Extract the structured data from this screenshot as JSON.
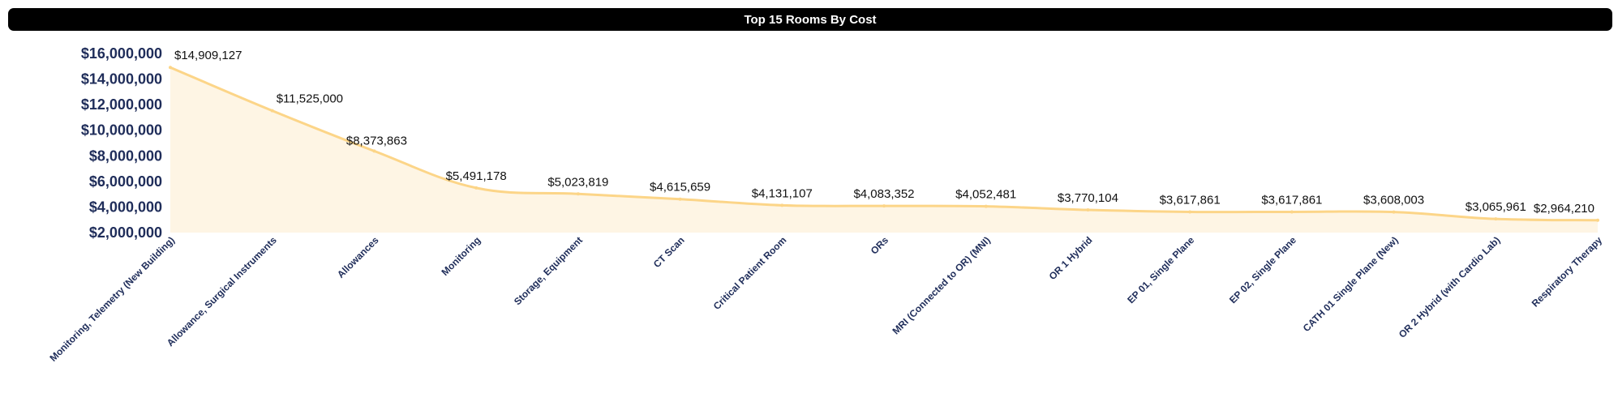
{
  "chart_data": {
    "type": "area",
    "title": "Top 15 Rooms By Cost",
    "xlabel": "",
    "ylabel": "",
    "ylim": [
      2000000,
      16000000
    ],
    "yticks": [
      2000000,
      4000000,
      6000000,
      8000000,
      10000000,
      12000000,
      14000000,
      16000000
    ],
    "ytick_labels": [
      "$2,000,000",
      "$4,000,000",
      "$6,000,000",
      "$8,000,000",
      "$10,000,000",
      "$12,000,000",
      "$14,000,000",
      "$16,000,000"
    ],
    "categories": [
      "Monitoring, Telemetry (New Building)",
      "Allowance, Surgical Instruments",
      "Allowances",
      "Monitoring",
      "Storage, Equipment",
      "CT Scan",
      "Critical Patient Room",
      "ORs",
      "MRI (Connected to OR) (MNI)",
      "OR 1 Hybrid",
      "EP 01, Single Plane",
      "EP 02, Single Plane",
      "CATH 01 Single Plane (New)",
      "OR 2 Hybrid (with Cardio Lab)",
      "Respiratory Therapy"
    ],
    "values": [
      14909127,
      11525000,
      8373863,
      5491178,
      5023819,
      4615659,
      4131107,
      4083352,
      4052481,
      3770104,
      3617861,
      3617861,
      3608003,
      3065961,
      2964210
    ],
    "data_labels": [
      "$14,909,127",
      "$11,525,000",
      "$8,373,863",
      "$5,491,178",
      "$5,023,819",
      "$4,615,659",
      "$4,131,107",
      "$4,083,352",
      "$4,052,481",
      "$3,770,104",
      "$3,617,861",
      "$3,617,861",
      "$3,608,003",
      "$3,065,961",
      "$2,964,210"
    ],
    "grid": false,
    "legend": "none",
    "colors": {
      "line": "#fcd588",
      "fill": "#fef5e4"
    }
  }
}
